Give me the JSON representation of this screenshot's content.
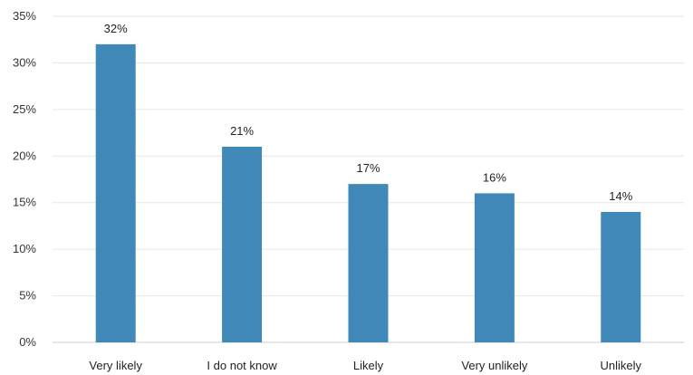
{
  "chart_data": {
    "type": "bar",
    "categories": [
      "Very likely",
      "I do not know",
      "Likely",
      "Very unlikely",
      "Unlikely"
    ],
    "values": [
      32,
      21,
      17,
      16,
      14
    ],
    "data_labels": [
      "32%",
      "21%",
      "17%",
      "16%",
      "14%"
    ],
    "ylim": [
      0,
      35
    ],
    "yticks": [
      0,
      5,
      10,
      15,
      20,
      25,
      30,
      35
    ],
    "ytick_labels": [
      "0%",
      "5%",
      "10%",
      "15%",
      "20%",
      "25%",
      "30%",
      "35%"
    ],
    "grid": true,
    "legend": "none",
    "bar_color": "#3f88b7",
    "title": "",
    "xlabel": "",
    "ylabel": ""
  }
}
